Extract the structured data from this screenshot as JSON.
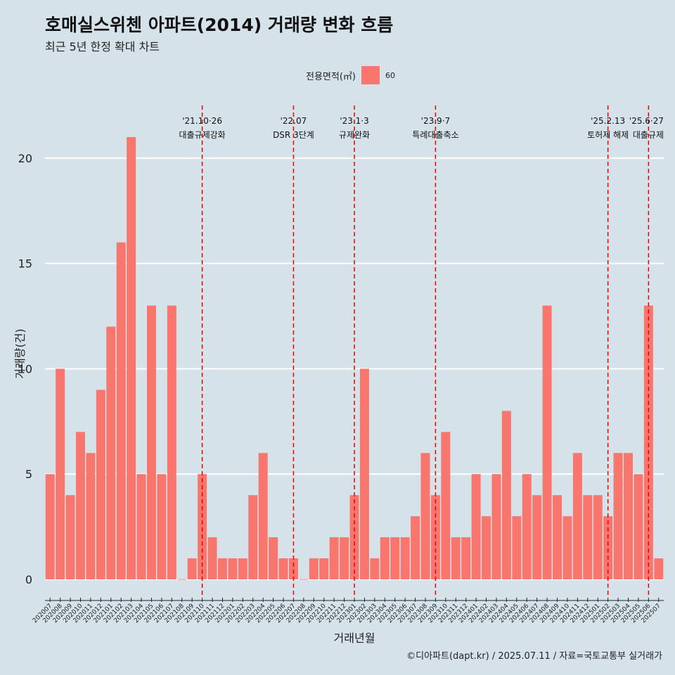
{
  "title": "호매실스위첸 아파트(2014) 거래량 변화 흐름",
  "subtitle": "최근 5년 한정 확대 차트",
  "caption": "©디아파트(dapt.kr) / 2025.07.11 / 자료=국토교통부 실거래가",
  "legend": {
    "title": "전용면적(㎡)",
    "items": [
      "60"
    ]
  },
  "colors": {
    "bar": "#f8766d",
    "event_line": "#ee0000",
    "background": "#d5e2ea",
    "grid": "#ffffff"
  },
  "chart_data": {
    "type": "bar",
    "title": "호매실스위첸 아파트(2014) 거래량 변화 흐름",
    "subtitle": "최근 5년 한정 확대 차트",
    "xlabel": "거래년월",
    "ylabel": "거래량(건)",
    "ylim": [
      -0.8,
      22.5
    ],
    "yticks": [
      0,
      5,
      10,
      15,
      20
    ],
    "grid": true,
    "legend_position": "top",
    "categories": [
      "202007",
      "202008",
      "202009",
      "202010",
      "202011",
      "202012",
      "202101",
      "202102",
      "202103",
      "202104",
      "202105",
      "202106",
      "202107",
      "202108",
      "202109",
      "202110",
      "202111",
      "202112",
      "202201",
      "202202",
      "202203",
      "202204",
      "202205",
      "202206",
      "202207",
      "202208",
      "202209",
      "202210",
      "202211",
      "202212",
      "202301",
      "202302",
      "202303",
      "202304",
      "202305",
      "202306",
      "202307",
      "202308",
      "202309",
      "202310",
      "202311",
      "202312",
      "202401",
      "202402",
      "202403",
      "202404",
      "202405",
      "202406",
      "202407",
      "202408",
      "202409",
      "202410",
      "202411",
      "202412",
      "202501",
      "202502",
      "202503",
      "202504",
      "202505",
      "202506",
      "202507"
    ],
    "series": [
      {
        "name": "60",
        "values": [
          5,
          10,
          4,
          7,
          6,
          9,
          12,
          16,
          21,
          5,
          13,
          5,
          13,
          0,
          1,
          5,
          2,
          1,
          1,
          1,
          4,
          6,
          2,
          1,
          1,
          0,
          1,
          1,
          2,
          2,
          4,
          10,
          1,
          2,
          2,
          2,
          3,
          6,
          4,
          7,
          2,
          2,
          5,
          3,
          5,
          8,
          3,
          5,
          4,
          13,
          4,
          3,
          6,
          4,
          4,
          3,
          6,
          6,
          5,
          13,
          1
        ]
      }
    ],
    "events": [
      {
        "category": "202110",
        "date": "'21.10·26",
        "label": "대출규제강화"
      },
      {
        "category": "202207",
        "date": "'22.07",
        "label": "DSR 3단계"
      },
      {
        "category": "202301",
        "date": "'23.1·3",
        "label": "규제완화"
      },
      {
        "category": "202309",
        "date": "'23.9·7",
        "label": "특례대출축소"
      },
      {
        "category": "202502",
        "date": "'25.2.13",
        "label": "토허제 해제"
      },
      {
        "category": "202506",
        "date": "'25.6·27",
        "label": "대출규제"
      }
    ]
  }
}
